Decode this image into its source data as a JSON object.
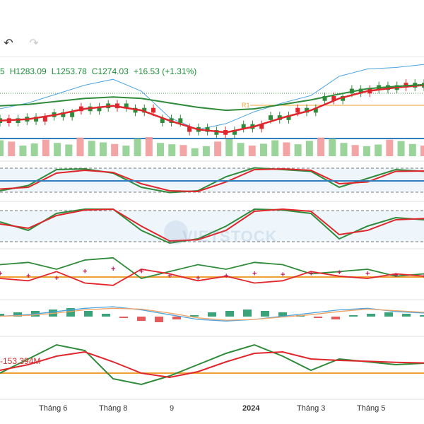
{
  "toolbar": {
    "undo_icon": "undo-icon",
    "redo_icon": "redo-icon"
  },
  "ohlc": {
    "open_tail": "5",
    "high": "H1283.09",
    "low": "L1253.78",
    "close": "C1274.03",
    "change": "+16.53 (+1.31%)"
  },
  "pivot_label": "R1",
  "volume_indicator_value": "-153.394M",
  "watermark": "VIETSTOCK",
  "colors": {
    "up": "#2e8b3a",
    "down": "#e0262b",
    "upper_band": "#4aa3df",
    "orange": "#f0a030",
    "macd_signal": "#f4a261"
  },
  "chart_data": [
    {
      "type": "line",
      "panel": "price",
      "x_ticks": [
        "Tháng 6",
        "Tháng 8",
        "9",
        "2024",
        "Tháng 3",
        "Tháng 5"
      ],
      "series": [
        {
          "values": [
            1130,
            1150,
            1180,
            1210,
            1230,
            1190,
            1100,
            1060,
            1080,
            1120,
            1150,
            1175,
            1240,
            1265,
            1270,
            1280
          ]
        },
        {
          "values": [
            1200,
            1205,
            1215,
            1225,
            1230,
            1225,
            1210,
            1195,
            1185,
            1190,
            1205,
            1220,
            1240,
            1258,
            1266,
            1272
          ]
        },
        {
          "values": [
            1150,
            1155,
            1170,
            1190,
            1200,
            1185,
            1150,
            1120,
            1110,
            1130,
            1160,
            1185,
            1225,
            1250,
            1262,
            1270
          ]
        }
      ],
      "annotations": [
        "R1"
      ]
    },
    {
      "type": "bar",
      "panel": "volume",
      "values": [
        60,
        55,
        40,
        48,
        62,
        50,
        44,
        70,
        58,
        52,
        46,
        40,
        66,
        72,
        50,
        45,
        42,
        30,
        38,
        55,
        64,
        50,
        40,
        47,
        60,
        52,
        45,
        58,
        70,
        66,
        50,
        42,
        38,
        44,
        62,
        57,
        46,
        40
      ]
    },
    {
      "type": "line",
      "panel": "oscillator-1",
      "series": [
        {
          "values": [
            20,
            35,
            80,
            82,
            70,
            30,
            15,
            20,
            60,
            85,
            80,
            75,
            30,
            55,
            80,
            75
          ]
        },
        {
          "values": [
            25,
            30,
            70,
            78,
            72,
            40,
            20,
            18,
            45,
            80,
            82,
            78,
            40,
            45,
            75,
            76
          ]
        }
      ]
    },
    {
      "type": "line",
      "panel": "oscillator-2",
      "series": [
        {
          "values": [
            60,
            40,
            80,
            90,
            90,
            40,
            10,
            20,
            50,
            90,
            88,
            80,
            20,
            50,
            70,
            65
          ]
        },
        {
          "values": [
            55,
            45,
            75,
            88,
            90,
            50,
            15,
            18,
            40,
            85,
            90,
            85,
            30,
            40,
            65,
            68
          ]
        }
      ]
    },
    {
      "type": "line",
      "panel": "dmi",
      "series": [
        {
          "values": [
            70,
            75,
            60,
            80,
            85,
            40,
            55,
            70,
            60,
            75,
            70,
            50,
            55,
            60,
            45,
            50
          ]
        },
        {
          "values": [
            40,
            35,
            55,
            30,
            25,
            60,
            50,
            35,
            45,
            30,
            35,
            55,
            45,
            40,
            50,
            45
          ]
        },
        {
          "values": [
            50,
            45,
            40,
            55,
            60,
            55,
            45,
            40,
            45,
            50,
            48,
            50,
            52,
            50,
            46,
            44
          ]
        }
      ]
    },
    {
      "type": "bar",
      "panel": "macd",
      "values": [
        2,
        3,
        4,
        5,
        6,
        4,
        2,
        -1,
        -3,
        -4,
        -2,
        1,
        3,
        4,
        5,
        4,
        3,
        1,
        -1,
        -2,
        1,
        2,
        3,
        2,
        1
      ]
    },
    {
      "type": "line",
      "panel": "volume-oscillator",
      "series": [
        {
          "values": [
            -20,
            30,
            80,
            60,
            -40,
            -60,
            -30,
            10,
            50,
            80,
            40,
            -10,
            30,
            20,
            10,
            15
          ]
        },
        {
          "values": [
            -10,
            10,
            40,
            55,
            20,
            -20,
            -35,
            -15,
            20,
            50,
            55,
            30,
            25,
            22,
            18,
            16
          ]
        }
      ]
    }
  ]
}
